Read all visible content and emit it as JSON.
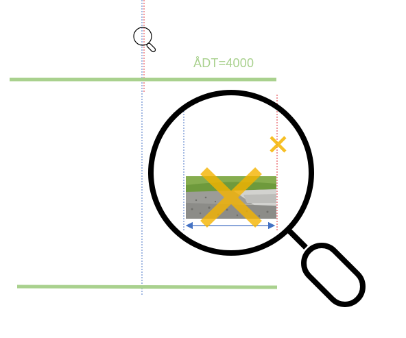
{
  "road": {
    "traffic_label": "ÅDT=4000"
  },
  "colors": {
    "road_edge": "#a9d18e",
    "centerline_blue": "#4472c4",
    "centerline_red": "#e0303a",
    "cross": "#f5b400",
    "magnifier": "#000000",
    "grass": "#6e9a3c",
    "gravel": "#9a9a9a",
    "curb": "#c8c8c8"
  },
  "icons": {
    "small_magnifier": "magnifier-icon",
    "large_magnifier": "magnifier-icon",
    "small_cross": "close-icon",
    "large_cross": "close-icon"
  }
}
